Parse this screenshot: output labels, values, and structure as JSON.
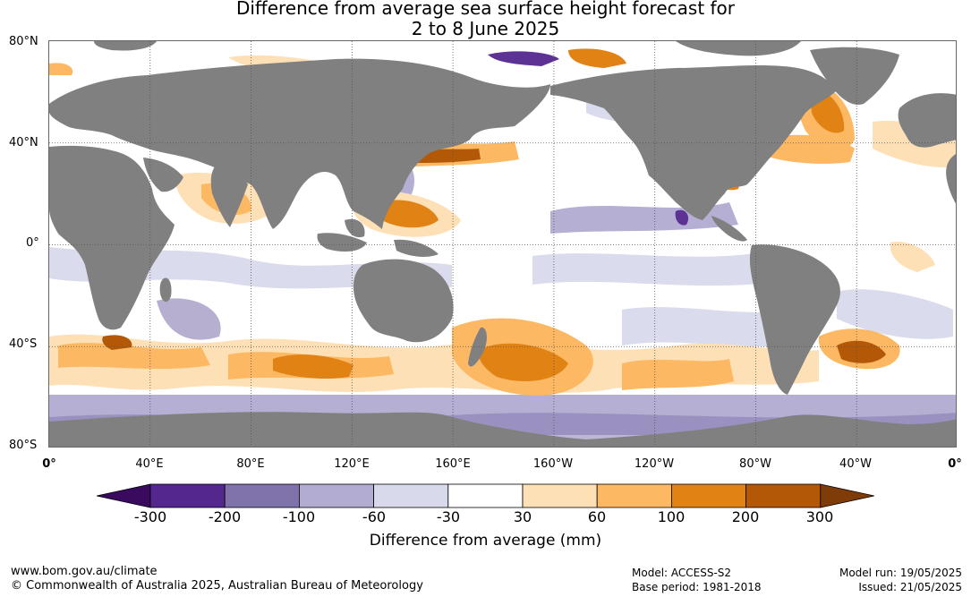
{
  "title": {
    "line1": "Difference from average sea surface height forecast for",
    "line2": "2 to 8 June 2025"
  },
  "axes": {
    "lat_labels": [
      "80°N",
      "40°N",
      "0°",
      "40°S",
      "80°S"
    ],
    "lon_labels": [
      "0°",
      "40°E",
      "80°E",
      "120°E",
      "160°E",
      "160°W",
      "120°W",
      "80°W",
      "40°W",
      "0°"
    ]
  },
  "colorbar": {
    "ticks": [
      "-300",
      "-200",
      "-100",
      "-60",
      "-30",
      "30",
      "60",
      "100",
      "200",
      "300"
    ],
    "colors": [
      "#3a0a5e",
      "#54278f",
      "#8073ac",
      "#b2abd2",
      "#d8daeb",
      "#ffffff",
      "#fee0b6",
      "#fdb863",
      "#e08214",
      "#b35806",
      "#7f3b08"
    ],
    "label": "Difference from average (mm)"
  },
  "map": {
    "land_color": "#808080",
    "ocean_color": "#ffffff",
    "grid_color": "#444444"
  },
  "footer": {
    "website": "www.bom.gov.au/climate",
    "copyright": "© Commonwealth of Australia 2025, Australian Bureau of Meteorology",
    "model": "Model: ACCESS-S2",
    "base_period": "Base period: 1981-2018",
    "model_run": "Model run: 19/05/2025",
    "issued": "Issued: 21/05/2025"
  }
}
